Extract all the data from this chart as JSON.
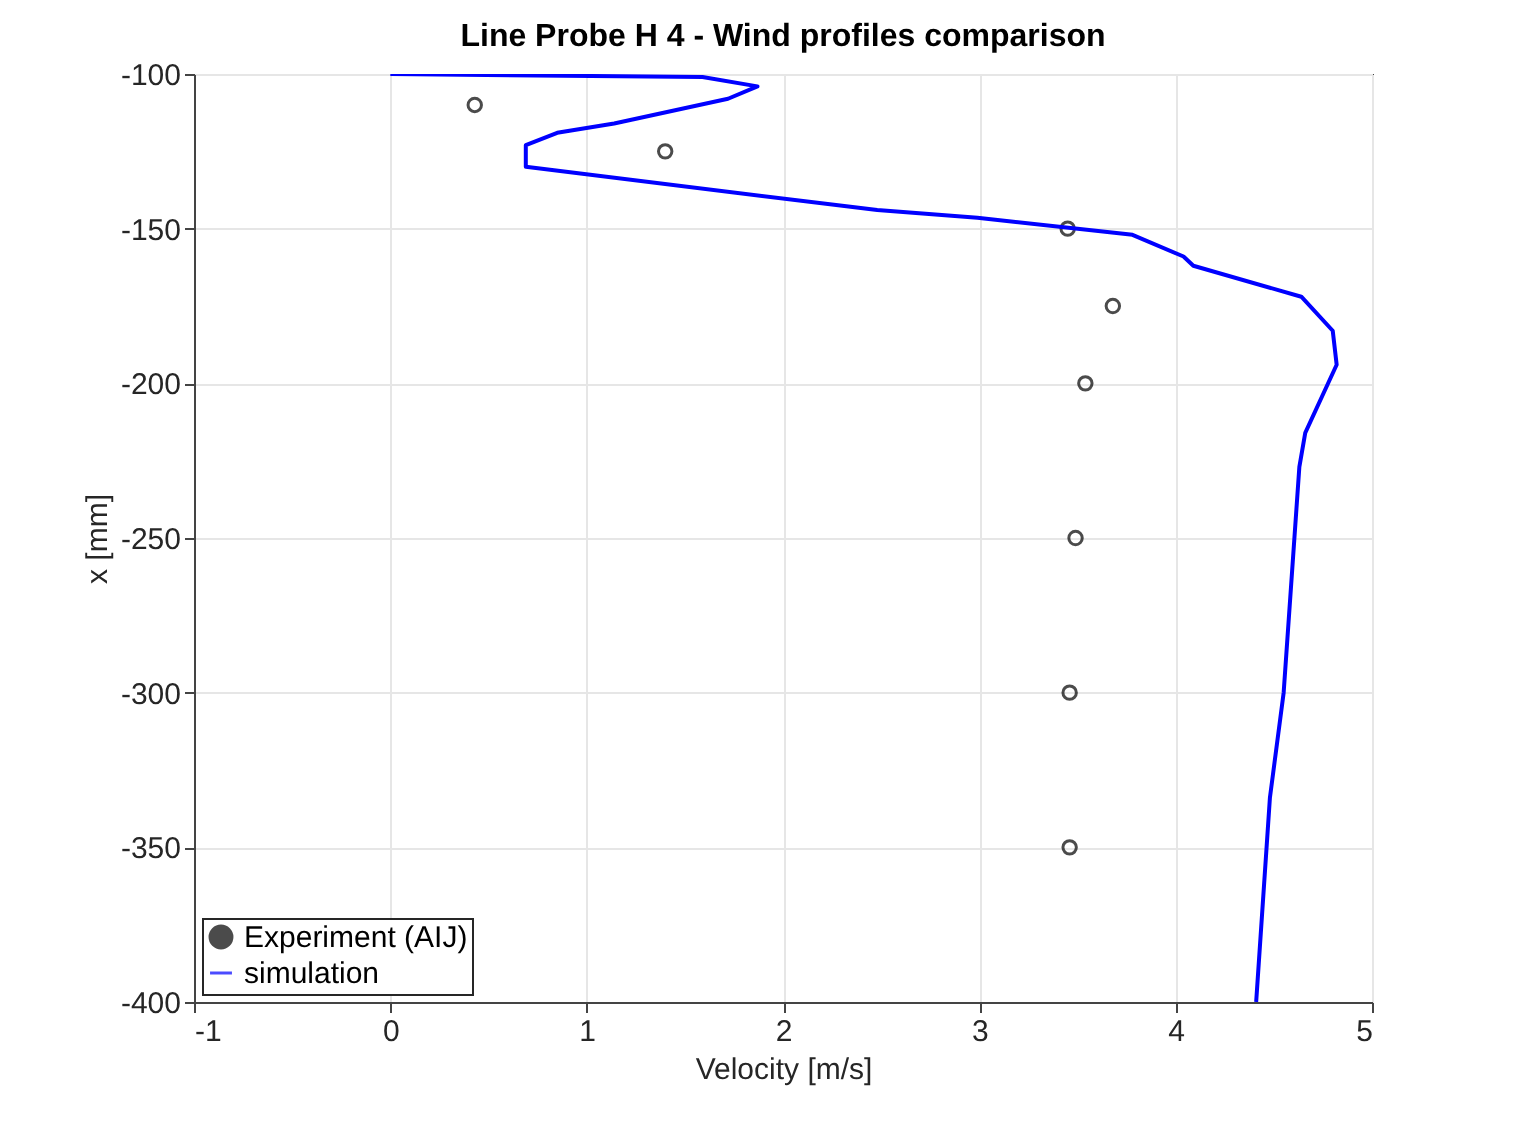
{
  "chart_data": {
    "type": "line",
    "title": "Line Probe H 4 - Wind profiles comparison",
    "xlabel": "Velocity [m/s]",
    "ylabel": "x [mm]",
    "xlim": [
      -1,
      5
    ],
    "xticks": [
      -1,
      0,
      1,
      2,
      3,
      4,
      5
    ],
    "ylim": [
      -400,
      -100
    ],
    "yticks": [
      -400,
      -350,
      -300,
      -250,
      -200,
      -150,
      -100
    ],
    "grid": true,
    "legend": "bottom left",
    "series": [
      {
        "name": "Experiment (AIJ)",
        "type": "scatter",
        "marker": "circle",
        "color": "#000000",
        "x": [
          0.43,
          1.4,
          3.45,
          3.68,
          3.54,
          3.49,
          3.46,
          3.46
        ],
        "values": [
          -110,
          -125,
          -150,
          -175,
          -200,
          -250,
          -300,
          -350
        ]
      },
      {
        "name": "simulation",
        "type": "line",
        "marker": "none",
        "line_style": "solid",
        "color": "#0000ff",
        "x": [
          0,
          1.59,
          1.87,
          1.72,
          1.14,
          0.85,
          0.69,
          0.69,
          2.48,
          2.99,
          3.78,
          4.04,
          4.09,
          4.64,
          4.8,
          4.82,
          4.66,
          4.63,
          4.55,
          4.48,
          4.41
        ],
        "values": [
          -100,
          -101,
          -104,
          -108,
          -116,
          -119,
          -123,
          -130,
          -144,
          -146.5,
          -152,
          -159,
          -162,
          -172,
          -183,
          -194,
          -216,
          -227,
          -300,
          -334,
          -400
        ]
      }
    ]
  }
}
